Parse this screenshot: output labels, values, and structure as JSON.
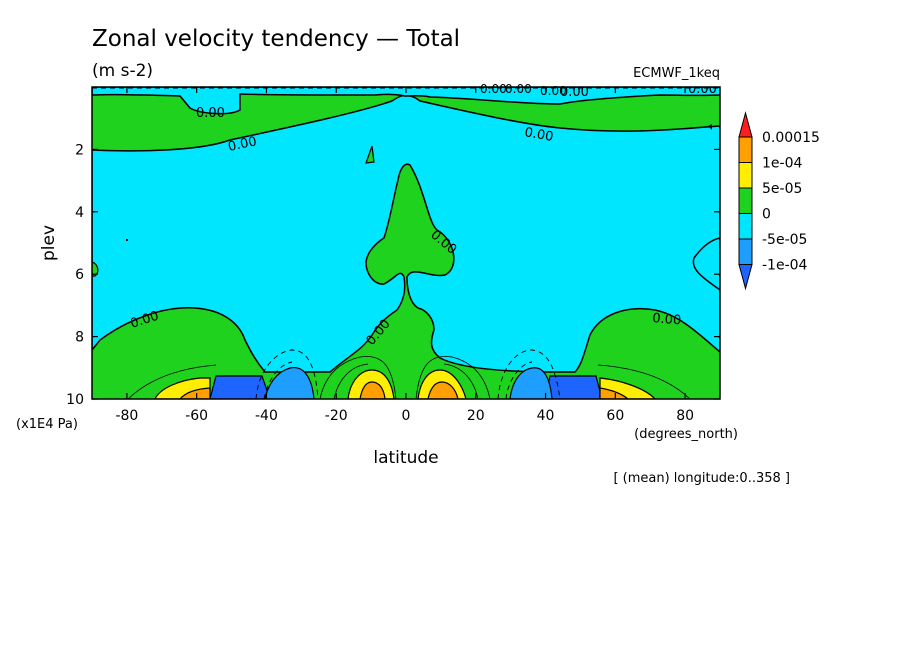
{
  "chart_data": {
    "type": "contour",
    "title": "Zonal velocity tendency — Total",
    "units": "(m s-2)",
    "dataset": "ECMWF_1keq",
    "xlabel": "latitude",
    "x_units": "(degrees_north)",
    "ylabel": "plev",
    "y_units": "(x1E4 Pa)",
    "note": "[ (mean) longitude:0..358 ]",
    "xlim": [
      -90,
      90
    ],
    "ylim": [
      0,
      10
    ],
    "y_inverted": true,
    "x_ticks": [
      -80,
      -60,
      -40,
      -20,
      0,
      20,
      40,
      60,
      80
    ],
    "y_ticks": [
      2,
      4,
      6,
      8,
      10
    ],
    "contour_labels": [
      "0.00",
      "0.00",
      "0.00",
      "0.00",
      "0.00",
      "0.00",
      "0.00",
      "0.00",
      "0.00"
    ],
    "top_overlap_label": "0.00",
    "levels": [
      {
        "label": "0.00015",
        "color": "#ff1e1e"
      },
      {
        "label": "1e-04",
        "color": "#ffa000"
      },
      {
        "label": "5e-05",
        "color": "#ffee00"
      },
      {
        "label": "0",
        "color": "#1ed21e"
      },
      {
        "label": "-5e-05",
        "color": "#00e6ff"
      },
      {
        "label": "-1e-04",
        "color": "#1e82ff"
      }
    ],
    "colorbar_top_color": "#ff1e1e",
    "colorbar_bottom_color": "#1e64ff"
  }
}
